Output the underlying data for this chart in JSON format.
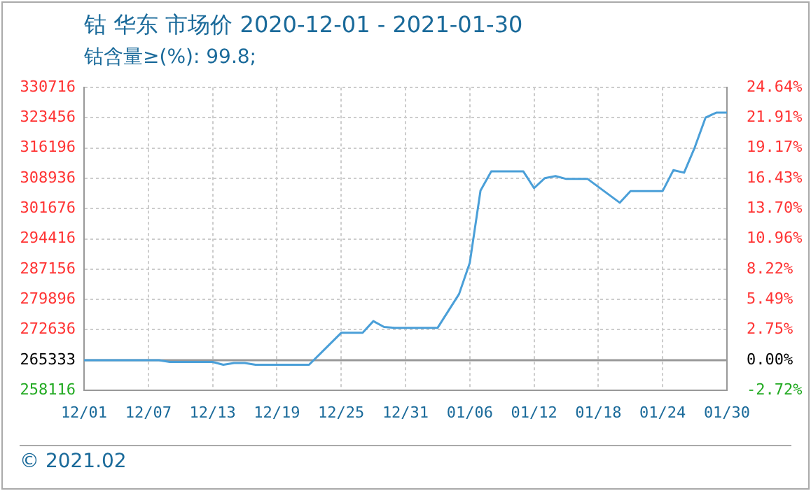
{
  "chart_data": {
    "type": "line",
    "title": "钴 华东 市场价 2020-12-01 - 2021-01-30",
    "subtitle": "钴含量≥(%): 99.8;",
    "annotations": [
      "© 2021.02"
    ],
    "x": [
      "2020-12-01",
      "2020-12-08",
      "2020-12-09",
      "2020-12-13",
      "2020-12-14",
      "2020-12-15",
      "2020-12-16",
      "2020-12-17",
      "2020-12-22",
      "2020-12-25",
      "2020-12-27",
      "2020-12-28",
      "2020-12-29",
      "2020-12-30",
      "2021-01-03",
      "2021-01-05",
      "2021-01-06",
      "2021-01-07",
      "2021-01-08",
      "2021-01-11",
      "2021-01-12",
      "2021-01-13",
      "2021-01-14",
      "2021-01-15",
      "2021-01-17",
      "2021-01-20",
      "2021-01-21",
      "2021-01-24",
      "2021-01-25",
      "2021-01-26",
      "2021-01-27",
      "2021-01-28",
      "2021-01-29",
      "2021-01-30"
    ],
    "series": [
      {
        "color": "#4a9fd8",
        "values": [
          265333,
          265333,
          264900,
          264900,
          264230,
          264670,
          264670,
          264230,
          264230,
          271900,
          271900,
          274700,
          273300,
          273100,
          273100,
          281200,
          288700,
          306000,
          310600,
          310600,
          306600,
          309000,
          309500,
          308800,
          308800,
          303100,
          305900,
          305900,
          310900,
          310300,
          316400,
          323500,
          324700,
          324700
        ]
      }
    ],
    "xlim": [
      "2020-12-01",
      "2021-01-30"
    ],
    "xticks": [
      {
        "value": "2020-12-01",
        "label": "12/01"
      },
      {
        "value": "2020-12-07",
        "label": "12/07"
      },
      {
        "value": "2020-12-13",
        "label": "12/13"
      },
      {
        "value": "2020-12-19",
        "label": "12/19"
      },
      {
        "value": "2020-12-25",
        "label": "12/25"
      },
      {
        "value": "2020-12-31",
        "label": "12/31"
      },
      {
        "value": "2021-01-06",
        "label": "01/06"
      },
      {
        "value": "2021-01-12",
        "label": "01/12"
      },
      {
        "value": "2021-01-18",
        "label": "01/18"
      },
      {
        "value": "2021-01-24",
        "label": "01/24"
      },
      {
        "value": "2021-01-30",
        "label": "01/30"
      }
    ],
    "ylim": [
      258116,
      330716
    ],
    "yticks": [
      258116,
      265333,
      272636,
      279896,
      287156,
      294416,
      301676,
      308936,
      316196,
      323456,
      330716
    ],
    "y2lim": [
      -2.72,
      24.64
    ],
    "y2ticks": [
      {
        "value": -2.72,
        "label": "-2.72%"
      },
      {
        "value": 0,
        "label": "0.00%"
      },
      {
        "value": 2.75,
        "label": "2.75%"
      },
      {
        "value": 5.49,
        "label": "5.49%"
      },
      {
        "value": 8.22,
        "label": "8.22%"
      },
      {
        "value": 10.96,
        "label": "10.96%"
      },
      {
        "value": 13.7,
        "label": "13.70%"
      },
      {
        "value": 16.43,
        "label": "16.43%"
      },
      {
        "value": 19.17,
        "label": "19.17%"
      },
      {
        "value": 21.91,
        "label": "21.91%"
      },
      {
        "value": 24.64,
        "label": "24.64%"
      }
    ],
    "ref_lines": [
      {
        "axis": "y",
        "value": 265333,
        "color": "#999999"
      }
    ],
    "grid": true,
    "legend": false,
    "marker": "none",
    "line_style": "solid"
  }
}
